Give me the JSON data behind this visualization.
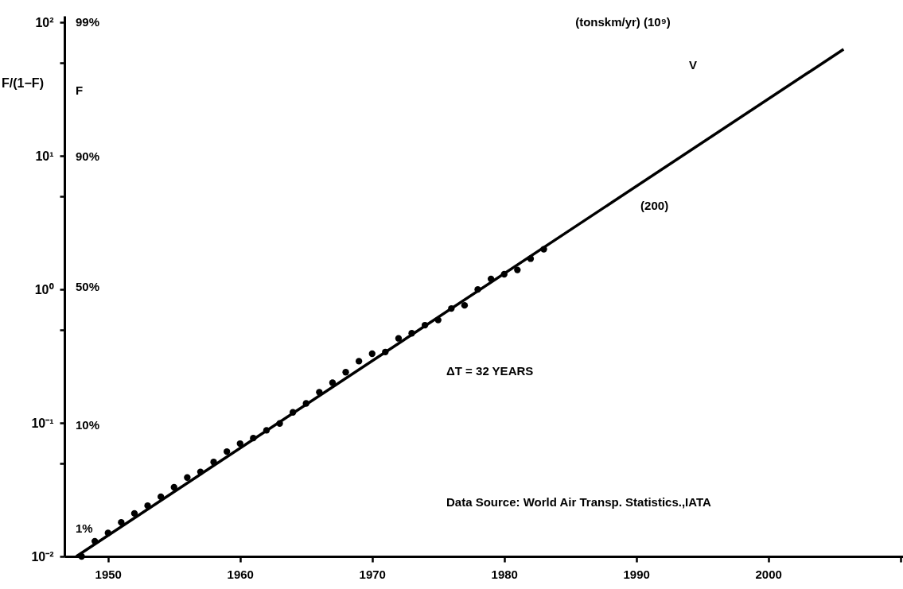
{
  "chart_data": {
    "type": "scatter",
    "title": "(tonskm/yr) (10⁹)",
    "ylabel": "F/(1−F)",
    "series": [
      {
        "marker": "circle",
        "color": "#000000",
        "x": [
          1948,
          1949,
          1950,
          1951,
          1952,
          1953,
          1954,
          1955,
          1956,
          1957,
          1958,
          1959,
          1960,
          1961,
          1962,
          1963,
          1964,
          1965,
          1966,
          1967,
          1968,
          1969,
          1970,
          1971,
          1972,
          1973,
          1974,
          1975,
          1976,
          1977,
          1978,
          1979,
          1980,
          1981,
          1982,
          1983
        ],
        "values": [
          0.01,
          0.013,
          0.015,
          0.018,
          0.021,
          0.024,
          0.028,
          0.033,
          0.039,
          0.043,
          0.051,
          0.061,
          0.07,
          0.077,
          0.088,
          0.099,
          0.12,
          0.14,
          0.17,
          0.2,
          0.24,
          0.29,
          0.33,
          0.34,
          0.43,
          0.47,
          0.54,
          0.59,
          0.72,
          0.76,
          1.0,
          1.2,
          1.3,
          1.4,
          1.7,
          2.0
        ]
      },
      {
        "type": "line",
        "color": "#000000",
        "x": [
          1947.6,
          2005.7
        ],
        "values": [
          0.01,
          63
        ]
      }
    ],
    "log": true,
    "grid": false,
    "xlim": [
      1946.7,
      2010.2
    ],
    "xticks": [
      1950,
      1960,
      1970,
      1980,
      1990,
      2000,
      {
        "value": 2010,
        "label": null
      }
    ],
    "ylim": [
      0.01,
      112
    ],
    "yticks": [
      {
        "value": 0.01,
        "label": "10⁻²"
      },
      {
        "value": 0.05,
        "label": null
      },
      {
        "value": 0.1,
        "label": "10⁻¹"
      },
      {
        "value": 0.5,
        "label": null
      },
      {
        "value": 1,
        "label": "10⁰"
      },
      {
        "value": 5,
        "label": null
      },
      {
        "value": 10,
        "label": "10¹"
      },
      {
        "value": 50,
        "label": null
      },
      {
        "value": 100,
        "label": "10²"
      }
    ],
    "annotations": [
      "99%",
      "F",
      "90%",
      "50%",
      "10%",
      "1%",
      "ΔT = 32 YEARS",
      "Data Source: World Air Transp. Statistics.,IATA",
      "V",
      {
        "text": "(200)",
        "x": 1989,
        "y": 5.4
      }
    ]
  }
}
